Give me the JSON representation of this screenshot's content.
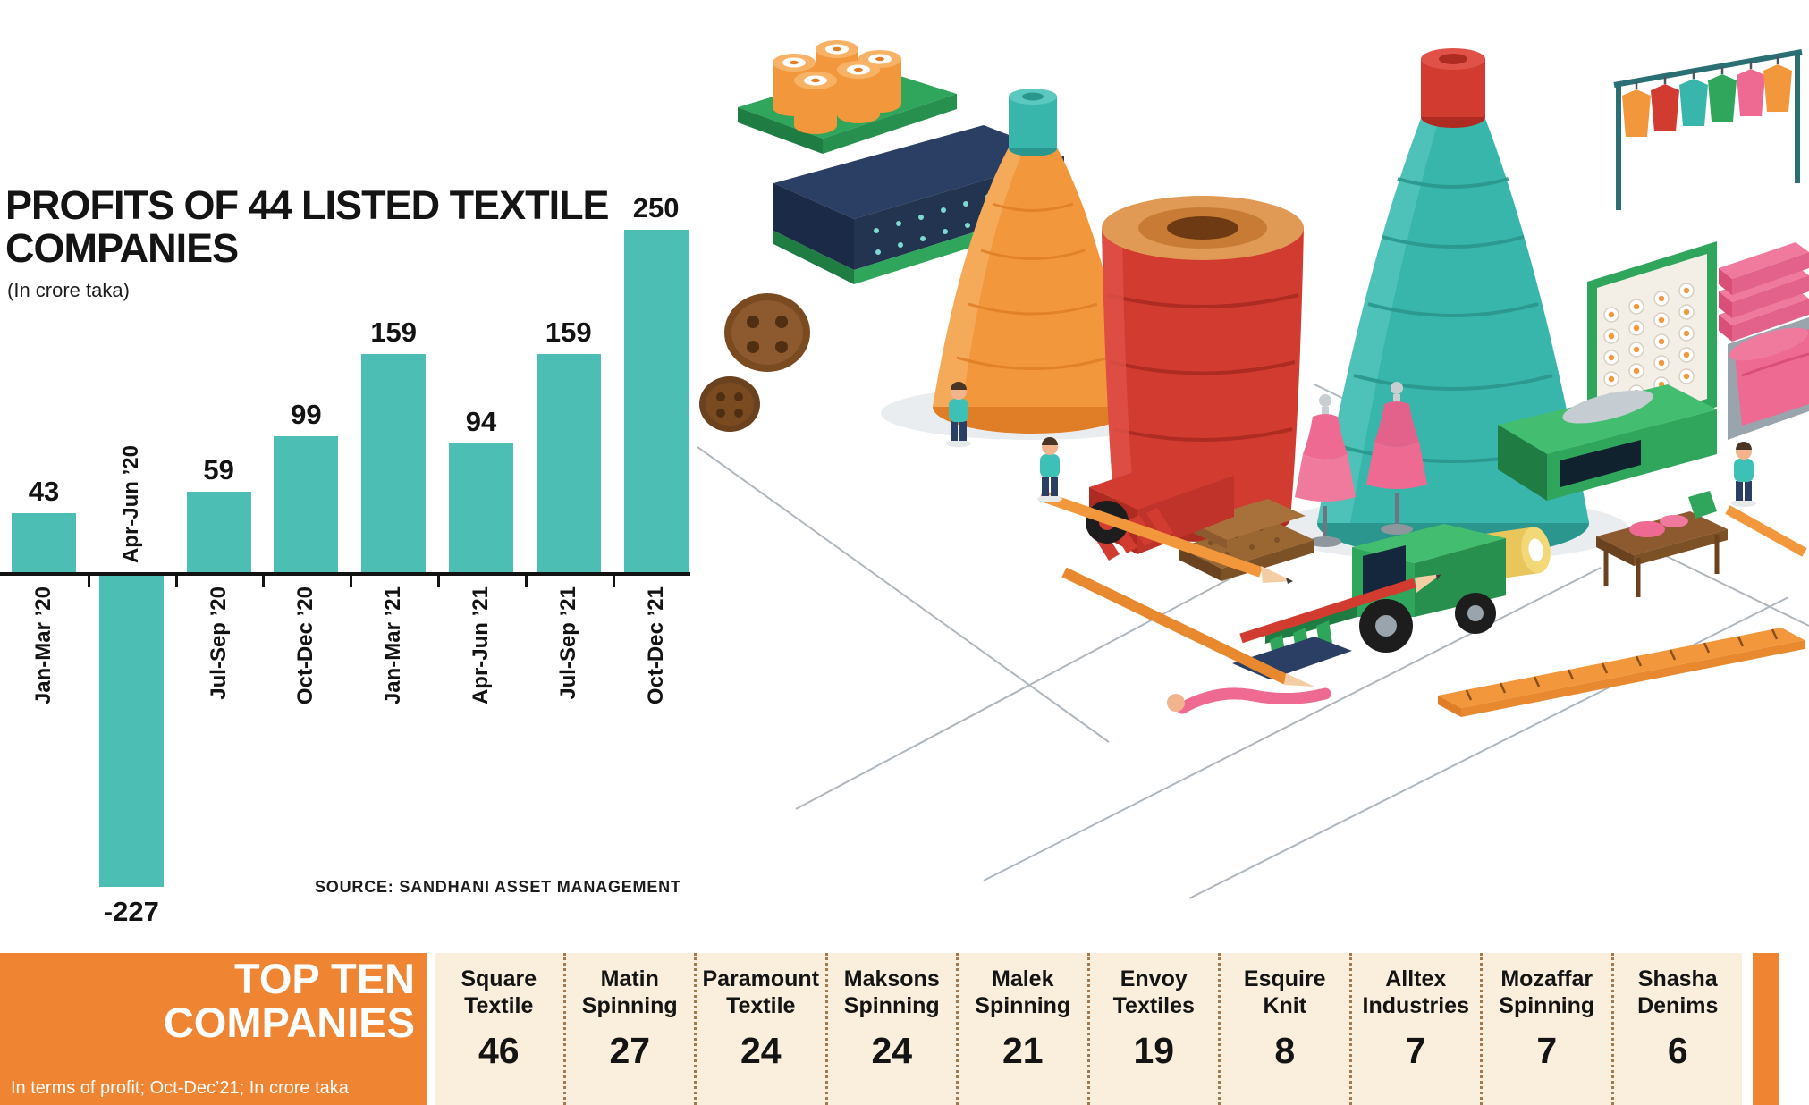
{
  "chart": {
    "title_line1": "PROFITS OF 44 LISTED TEXTILE",
    "title_line2": "COMPANIES",
    "subtitle": "(In crore taka)",
    "source": "SOURCE: SANDHANI ASSET MANAGEMENT"
  },
  "chart_data": {
    "type": "bar",
    "categories": [
      "Jan-Mar ’20",
      "Apr-Jun ’20",
      "Jul-Sep ’20",
      "Oct-Dec ’20",
      "Jan-Mar ’21",
      "Apr-Jun ’21",
      "Jul-Sep ’21",
      "Oct-Dec ’21"
    ],
    "values": [
      43,
      -227,
      59,
      99,
      159,
      94,
      159,
      250
    ],
    "title": "PROFITS OF 44 LISTED TEXTILE COMPANIES",
    "xlabel": "",
    "ylabel": "In crore taka",
    "ylim": [
      -260,
      280
    ],
    "grid": false,
    "legend": false,
    "bar_color": "#4CBEB3"
  },
  "top_ten": {
    "title_line1": "TOP TEN",
    "title_line2": "COMPANIES",
    "subtitle": "In terms of profit; Oct-Dec’21; In crore taka",
    "accent_color": "#EF8432",
    "panel_color": "#FAEEDD",
    "companies": [
      {
        "name": "Square Textile",
        "name_line1": "Square",
        "name_line2": "Textile",
        "value": 46
      },
      {
        "name": "Matin Spinning",
        "name_line1": "Matin",
        "name_line2": "Spinning",
        "value": 27
      },
      {
        "name": "Paramount Textile",
        "name_line1": "Paramount",
        "name_line2": "Textile",
        "value": 24
      },
      {
        "name": "Maksons Spinning",
        "name_line1": "Maksons",
        "name_line2": "Spinning",
        "value": 24
      },
      {
        "name": "Malek Spinning",
        "name_line1": "Malek",
        "name_line2": "Spinning",
        "value": 21
      },
      {
        "name": "Envoy Textiles",
        "name_line1": "Envoy",
        "name_line2": "Textiles",
        "value": 19
      },
      {
        "name": "Esquire Knit",
        "name_line1": "Esquire",
        "name_line2": "Knit",
        "value": 8
      },
      {
        "name": "Alltex Industries",
        "name_line1": "Alltex",
        "name_line2": "Industries",
        "value": 7
      },
      {
        "name": "Mozaffar Spinning",
        "name_line1": "Mozaffar",
        "name_line2": "Spinning",
        "value": 7
      },
      {
        "name": "Shasha Denims",
        "name_line1": "Shasha",
        "name_line2": "Denims",
        "value": 6
      }
    ]
  },
  "illustration": {
    "name": "isometric-textile-factory"
  }
}
